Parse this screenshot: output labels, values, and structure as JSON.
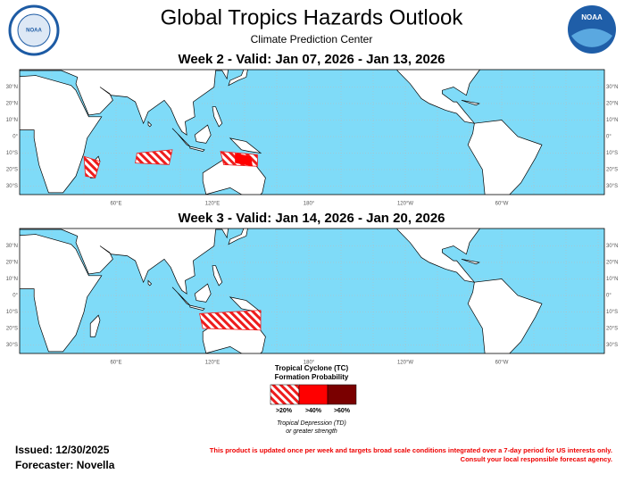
{
  "header": {
    "title": "Global Tropics Hazards Outlook",
    "subtitle": "Climate Prediction Center",
    "left_logo": "NOAA",
    "right_logo": "NOAA"
  },
  "panels": [
    {
      "title": "Week 2 - Valid: Jan 07, 2026 - Jan 13, 2026"
    },
    {
      "title": "Week 3 - Valid: Jan 14, 2026 - Jan 20, 2026"
    }
  ],
  "lat_labels": [
    "30°N",
    "20°N",
    "10°N",
    "0°",
    "10°S",
    "20°S",
    "30°S"
  ],
  "lon_labels": [
    "60°E",
    "120°E",
    "180°",
    "120°W",
    "60°W"
  ],
  "legend": {
    "title": "Tropical Cyclone (TC)",
    "subtitle": "Formation Probability",
    "items": [
      ">20%",
      ">40%",
      ">60%"
    ],
    "note": "Tropical Depression (TD)",
    "note2": "or greater strength"
  },
  "footer": {
    "issued": "Issued: 12/30/2025",
    "forecaster": "Forecaster: Novella",
    "disclaimer": "This product is updated once per week and targets broad scale conditions integrated over a 7-day period for US interests only.",
    "disclaimer2": "Consult your local responsible forecast agency."
  }
}
